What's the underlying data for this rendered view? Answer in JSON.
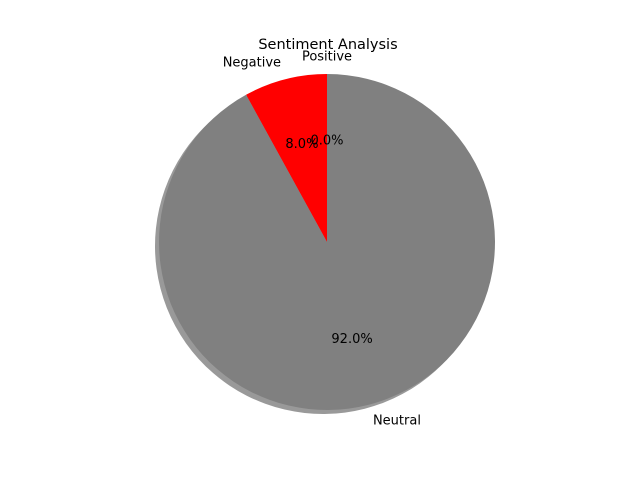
{
  "chart_data": {
    "type": "pie",
    "title": "Sentiment Analysis",
    "categories": [
      "Positive",
      "Negative",
      "Neutral"
    ],
    "values": [
      0.0,
      8.0,
      92.0
    ],
    "value_labels": [
      "0.0%",
      "8.0%",
      "92.0%"
    ],
    "colors": [
      "#008000",
      "#ff0000",
      "#808080"
    ],
    "start_angle": 90,
    "direction": "counterclockwise",
    "shadow": true,
    "legend": "none"
  }
}
